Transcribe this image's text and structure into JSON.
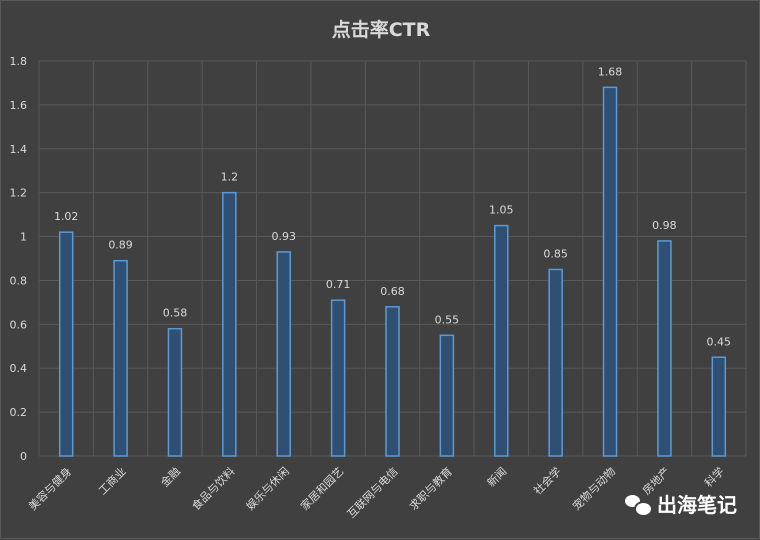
{
  "chart_data": {
    "type": "bar",
    "title": "点击率CTR",
    "categories": [
      "美容与健身",
      "工商业",
      "金融",
      "食品与饮料",
      "娱乐与休闲",
      "家居和园艺",
      "互联网与电信",
      "求职与教育",
      "新闻",
      "社会学",
      "宠物与动物",
      "房地产",
      "科学"
    ],
    "values": [
      1.02,
      0.89,
      0.58,
      1.2,
      0.93,
      0.71,
      0.68,
      0.55,
      1.05,
      0.85,
      1.68,
      0.98,
      0.45
    ],
    "value_labels": [
      "1.02",
      "0.89",
      "0.58",
      "1.2",
      "0.93",
      "0.71",
      "0.68",
      "0.55",
      "1.05",
      "0.85",
      "1.68",
      "0.98",
      "0.45"
    ],
    "yticks": [
      "0",
      "0.2",
      "0.4",
      "0.6",
      "0.8",
      "1",
      "1.2",
      "1.4",
      "1.6",
      "1.8"
    ],
    "ylim": [
      0,
      1.8
    ],
    "grid": true,
    "legend": "none",
    "colors": {
      "background": "#404040",
      "bar_fill": "#2f4f73",
      "bar_edge": "#5b9bd5",
      "grid": "#595959",
      "text": "#d9d9d9"
    }
  },
  "watermark": {
    "text": "出海笔记",
    "icon": "wechat-icon"
  }
}
